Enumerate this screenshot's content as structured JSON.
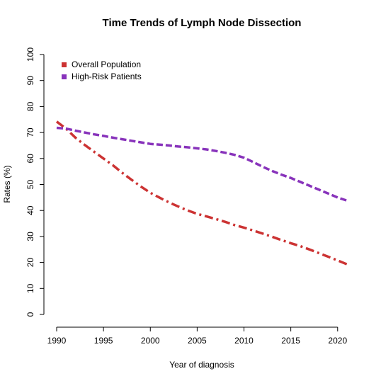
{
  "chart_data": {
    "type": "line",
    "title": "Time Trends of Lymph Node Dissection",
    "xlabel": "Year of diagnosis",
    "ylabel": "Rates (%)",
    "xlim": [
      1990,
      2021
    ],
    "ylim": [
      0,
      100
    ],
    "x_ticks": [
      1990,
      1995,
      2000,
      2005,
      2010,
      2015,
      2020
    ],
    "y_ticks": [
      0,
      10,
      20,
      30,
      40,
      50,
      60,
      70,
      80,
      90,
      100
    ],
    "grid": false,
    "legend_position": "top-left",
    "series": [
      {
        "name": "Overall Population",
        "color": "#cc3333",
        "dash": "dash-dot",
        "x": [
          1990,
          1991,
          1992,
          1993,
          1994,
          1995,
          1996,
          1997,
          1998,
          1999,
          2000,
          2001,
          2002,
          2003,
          2004,
          2005,
          2006,
          2007,
          2008,
          2009,
          2010,
          2011,
          2012,
          2013,
          2014,
          2015,
          2016,
          2017,
          2018,
          2019,
          2020,
          2021
        ],
        "values": [
          74.2,
          71.5,
          68.0,
          65.2,
          62.6,
          60.0,
          57.4,
          54.5,
          51.8,
          49.2,
          46.8,
          44.9,
          43.1,
          41.5,
          40.0,
          38.7,
          37.7,
          36.7,
          35.6,
          34.4,
          33.4,
          32.3,
          31.1,
          29.9,
          28.6,
          27.4,
          26.3,
          25.0,
          23.6,
          22.2,
          20.8,
          19.3
        ]
      },
      {
        "name": "High-Risk Patients",
        "color": "#8833bb",
        "dash": "dash",
        "x": [
          1990,
          1991,
          1992,
          1993,
          1994,
          1995,
          1996,
          1997,
          1998,
          1999,
          2000,
          2001,
          2002,
          2003,
          2004,
          2005,
          2006,
          2007,
          2008,
          2009,
          2010,
          2011,
          2012,
          2013,
          2014,
          2015,
          2016,
          2017,
          2018,
          2019,
          2020,
          2021
        ],
        "values": [
          71.8,
          71.5,
          70.7,
          70.0,
          69.3,
          68.7,
          68.0,
          67.4,
          66.8,
          66.2,
          65.6,
          65.3,
          65.0,
          64.6,
          64.3,
          63.9,
          63.5,
          62.9,
          62.2,
          61.4,
          60.3,
          58.6,
          56.8,
          55.2,
          53.8,
          52.5,
          51.0,
          49.5,
          48.0,
          46.5,
          45.0,
          43.8
        ]
      }
    ]
  }
}
